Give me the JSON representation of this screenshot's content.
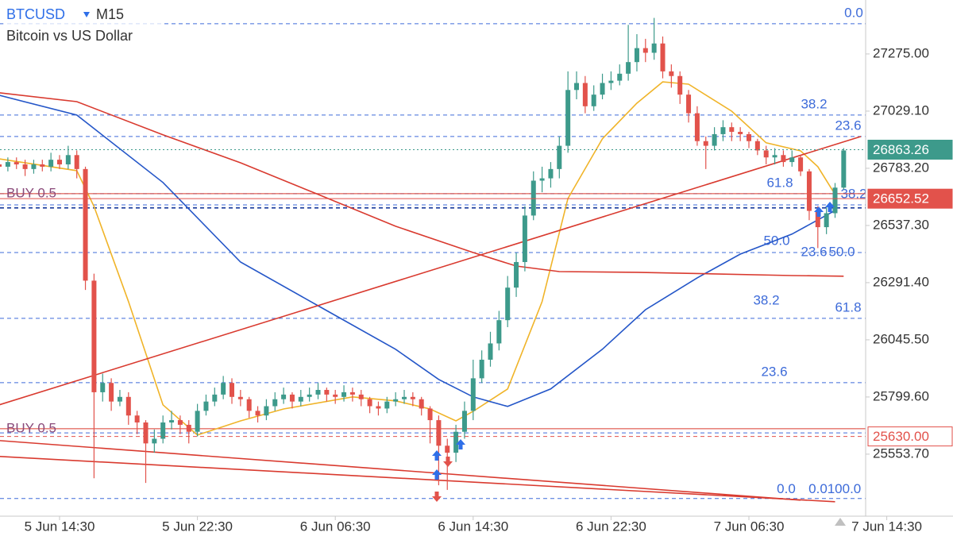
{
  "header": {
    "symbol": "BTCUSD",
    "timeframe": "M15",
    "description": "Bitcoin vs US Dollar"
  },
  "chart_data": {
    "type": "candlestick",
    "categories": [
      null,
      null,
      null,
      null,
      null,
      null,
      null,
      "5 Jun 14:30",
      null,
      null,
      null,
      null,
      null,
      null,
      null,
      null,
      null,
      null,
      null,
      null,
      null,
      null,
      null,
      "5 Jun 22:30",
      null,
      null,
      null,
      null,
      null,
      null,
      null,
      null,
      null,
      null,
      null,
      null,
      null,
      null,
      null,
      "6 Jun 06:30",
      null,
      null,
      null,
      null,
      null,
      null,
      null,
      null,
      null,
      null,
      null,
      null,
      null,
      null,
      null,
      "6 Jun 14:30",
      null,
      null,
      null,
      null,
      null,
      null,
      null,
      null,
      null,
      null,
      null,
      null,
      null,
      null,
      null,
      "6 Jun 22:30",
      null,
      null,
      null,
      null,
      null,
      null,
      null,
      null,
      null,
      null,
      null,
      null,
      null,
      null,
      null,
      "7 Jun 06:30",
      null,
      null,
      null,
      null,
      null,
      null,
      null,
      null,
      null,
      null,
      null,
      null,
      null,
      null,
      null,
      "7 Jun 14:30"
    ],
    "open": [
      26800,
      26790,
      26810,
      26800,
      26780,
      26800,
      26790,
      26820,
      26800,
      26840,
      26780,
      26300,
      25820,
      25860,
      25780,
      25800,
      25720,
      25690,
      25600,
      25620,
      25690,
      25700,
      25680,
      25650,
      25740,
      25780,
      25810,
      25860,
      25800,
      25790,
      25740,
      25720,
      25760,
      25790,
      25810,
      25780,
      25800,
      25810,
      25830,
      25810,
      25800,
      25820,
      25810,
      25790,
      25760,
      25750,
      25780,
      25790,
      25800,
      25790,
      25750,
      25700,
      25590,
      25560,
      25650,
      25740,
      25880,
      25960,
      26030,
      26130,
      26270,
      26380,
      26580,
      26730,
      26740,
      26780,
      26880,
      27120,
      27150,
      27050,
      27100,
      27150,
      27160,
      27190,
      27240,
      27300,
      27280,
      27320,
      27200,
      27180,
      27100,
      27020,
      26900,
      26880,
      26930,
      26960,
      26940,
      26930,
      26900,
      26860,
      26830,
      26840,
      26810,
      26830,
      26770,
      26600,
      26530,
      26590,
      26700,
      null,
      null,
      null,
      null,
      null
    ],
    "high": [
      26830,
      26830,
      26830,
      26820,
      26820,
      26820,
      26850,
      26840,
      26880,
      26860,
      26790,
      26330,
      25900,
      25880,
      25830,
      25820,
      25740,
      25700,
      25660,
      25720,
      25740,
      25720,
      25700,
      25770,
      25810,
      25840,
      25890,
      25880,
      25830,
      25800,
      25760,
      25790,
      25820,
      25840,
      25820,
      25830,
      25840,
      25860,
      25840,
      25830,
      25850,
      25840,
      25830,
      25800,
      25780,
      25800,
      25820,
      25830,
      25820,
      25800,
      25760,
      25720,
      25620,
      25680,
      25780,
      25960,
      26000,
      26080,
      26170,
      26320,
      26420,
      26620,
      26770,
      26790,
      26810,
      26920,
      27200,
      27200,
      27180,
      27140,
      27190,
      27200,
      27230,
      27400,
      27360,
      27340,
      27430,
      27350,
      27230,
      27200,
      27120,
      27050,
      26920,
      26960,
      26990,
      26980,
      26960,
      26940,
      26910,
      26880,
      26870,
      26860,
      26860,
      26840,
      26780,
      26620,
      26620,
      26720,
      26870,
      null,
      null,
      null,
      null,
      null
    ],
    "low": [
      26770,
      26770,
      26780,
      26750,
      26760,
      26770,
      26770,
      26780,
      26780,
      26740,
      26260,
      25450,
      25780,
      25740,
      25760,
      25680,
      25640,
      25430,
      25560,
      25600,
      25660,
      25640,
      25600,
      25630,
      25720,
      25760,
      25790,
      25770,
      25760,
      25710,
      25690,
      25700,
      25740,
      25770,
      25750,
      25760,
      25780,
      25790,
      25780,
      25770,
      25780,
      25780,
      25760,
      25730,
      25720,
      25730,
      25760,
      25770,
      25760,
      25720,
      25600,
      25420,
      25400,
      25520,
      25620,
      25700,
      25860,
      25930,
      26000,
      26100,
      26230,
      26340,
      26560,
      26680,
      26700,
      26740,
      26850,
      27080,
      27020,
      27030,
      27080,
      27120,
      27140,
      27160,
      27200,
      27240,
      27250,
      27170,
      27130,
      27060,
      26980,
      26880,
      26780,
      26860,
      26900,
      26900,
      26900,
      26870,
      26840,
      26800,
      26800,
      26790,
      26790,
      26750,
      26560,
      26440,
      26500,
      26570,
      26690,
      null,
      null,
      null,
      null,
      null
    ],
    "close": [
      26790,
      26810,
      26800,
      26780,
      26800,
      26790,
      26820,
      26800,
      26840,
      26780,
      26300,
      25820,
      25860,
      25780,
      25800,
      25720,
      25690,
      25600,
      25620,
      25690,
      25700,
      25680,
      25650,
      25740,
      25780,
      25810,
      25860,
      25800,
      25790,
      25740,
      25720,
      25760,
      25790,
      25810,
      25780,
      25800,
      25810,
      25830,
      25810,
      25800,
      25820,
      25810,
      25790,
      25760,
      25750,
      25780,
      25790,
      25800,
      25790,
      25750,
      25700,
      25590,
      25560,
      25650,
      25740,
      25880,
      25960,
      26030,
      26130,
      26270,
      26380,
      26580,
      26730,
      26740,
      26780,
      26880,
      27120,
      27150,
      27050,
      27100,
      27150,
      27160,
      27190,
      27240,
      27300,
      27280,
      27320,
      27200,
      27180,
      27100,
      27020,
      26900,
      26880,
      26930,
      26960,
      26940,
      26930,
      26900,
      26860,
      26830,
      26840,
      26810,
      26830,
      26770,
      26600,
      26530,
      26590,
      26700,
      26860,
      null,
      null,
      null,
      null,
      null
    ],
    "up_color": "#3d9a8b",
    "down_color": "#e2524b",
    "ylim": [
      25287,
      27507
    ],
    "yticks": [
      {
        "value": 25553.7,
        "label": "25553.70"
      },
      {
        "value": 25799.6,
        "label": "25799.60"
      },
      {
        "value": 26045.5,
        "label": "26045.50"
      },
      {
        "value": 26291.4,
        "label": "26291.40"
      },
      {
        "value": 26537.3,
        "label": "26537.30"
      },
      {
        "value": 26783.2,
        "label": "26783.20"
      },
      {
        "value": 27029.1,
        "label": "27029.10"
      },
      {
        "value": 27275,
        "label": "27275.00"
      }
    ],
    "lines": [
      {
        "color": "#f0b429",
        "x": [
          0,
          9,
          11,
          15,
          19,
          23,
          28,
          33,
          41,
          46,
          50,
          53,
          55,
          59,
          63,
          66,
          70,
          74,
          77,
          80,
          85,
          89,
          93,
          95,
          97
        ],
        "values": [
          26824,
          26773,
          26619,
          26210,
          25766,
          25636,
          25697,
          25748,
          25800,
          25783,
          25748,
          25697,
          25738,
          25834,
          26210,
          26653,
          26910,
          27063,
          27155,
          27145,
          27029,
          26893,
          26858,
          26790,
          26671
        ]
      },
      {
        "color": "#2456c8",
        "x": [
          0,
          9,
          19,
          28,
          37,
          46,
          51,
          55,
          59,
          64,
          70,
          75,
          81,
          86,
          92,
          97
        ],
        "values": [
          27097,
          27012,
          26722,
          26380,
          26192,
          26005,
          25875,
          25800,
          25759,
          25834,
          26005,
          26175,
          26312,
          26414,
          26500,
          26602
        ]
      },
      {
        "color": "#d93a2f",
        "x": [
          0,
          9,
          19,
          28,
          37,
          46,
          55,
          60,
          65,
          74,
          83,
          92,
          98
        ],
        "values": [
          27108,
          27070,
          26927,
          26807,
          26671,
          26534,
          26421,
          26363,
          26339,
          26336,
          26329,
          26322,
          26319
        ]
      },
      {
        "color": "#d93a2f",
        "x": [
          0,
          100
        ],
        "values": [
          25766,
          26920
        ]
      },
      {
        "color": "#d93a2f",
        "x": [
          0,
          93
        ],
        "values": [
          25612,
          25356
        ]
      },
      {
        "color": "#d93a2f",
        "x": [
          0,
          97
        ],
        "values": [
          25544,
          25349
        ]
      }
    ],
    "levels": [
      {
        "value": 27405,
        "color": "#3d6bd9",
        "labels": [
          "0.0"
        ]
      },
      {
        "value": 27012,
        "color": "#3d6bd9",
        "labels": [
          "38.2"
        ]
      },
      {
        "value": 26920,
        "color": "#3d6bd9",
        "labels": [
          "23.6"
        ]
      },
      {
        "value": 26674,
        "color": "#3d6bd9",
        "labels": [
          "61.8"
        ]
      },
      {
        "value": 26626,
        "color": "#3d6bd9",
        "labels": [
          "38.2"
        ]
      },
      {
        "value": 26613,
        "color": "#1f3f9e",
        "labels": []
      },
      {
        "value": 26421,
        "color": "#3d6bd9",
        "labels": [
          "50.0",
          "23.6",
          "50.0"
        ]
      },
      {
        "value": 26138,
        "color": "#3d6bd9",
        "labels": [
          "38.2",
          "61.8"
        ]
      },
      {
        "value": 25861,
        "color": "#3d6bd9",
        "labels": [
          "23.6"
        ]
      },
      {
        "value": 25645,
        "color": "#3d6bd9",
        "labels": []
      },
      {
        "value": 25363,
        "color": "#3d6bd9",
        "labels": [
          "0.0",
          "0.0",
          "100.0"
        ]
      }
    ],
    "orders": [
      {
        "text": "BUY 0.5",
        "value": 26674,
        "color": "#8a4a7a"
      },
      {
        "text": "BUY 0.5",
        "value": 25663,
        "color": "#8a4a7a"
      }
    ],
    "price_tags": [
      {
        "value": 26863.26,
        "color": "#3d9a8b",
        "style": "filled"
      },
      {
        "value": 26652.52,
        "color": "#e2524b",
        "style": "filled"
      },
      {
        "value": 25630,
        "label": "25630.00",
        "color": "#e2524b",
        "style": "outline"
      }
    ]
  }
}
